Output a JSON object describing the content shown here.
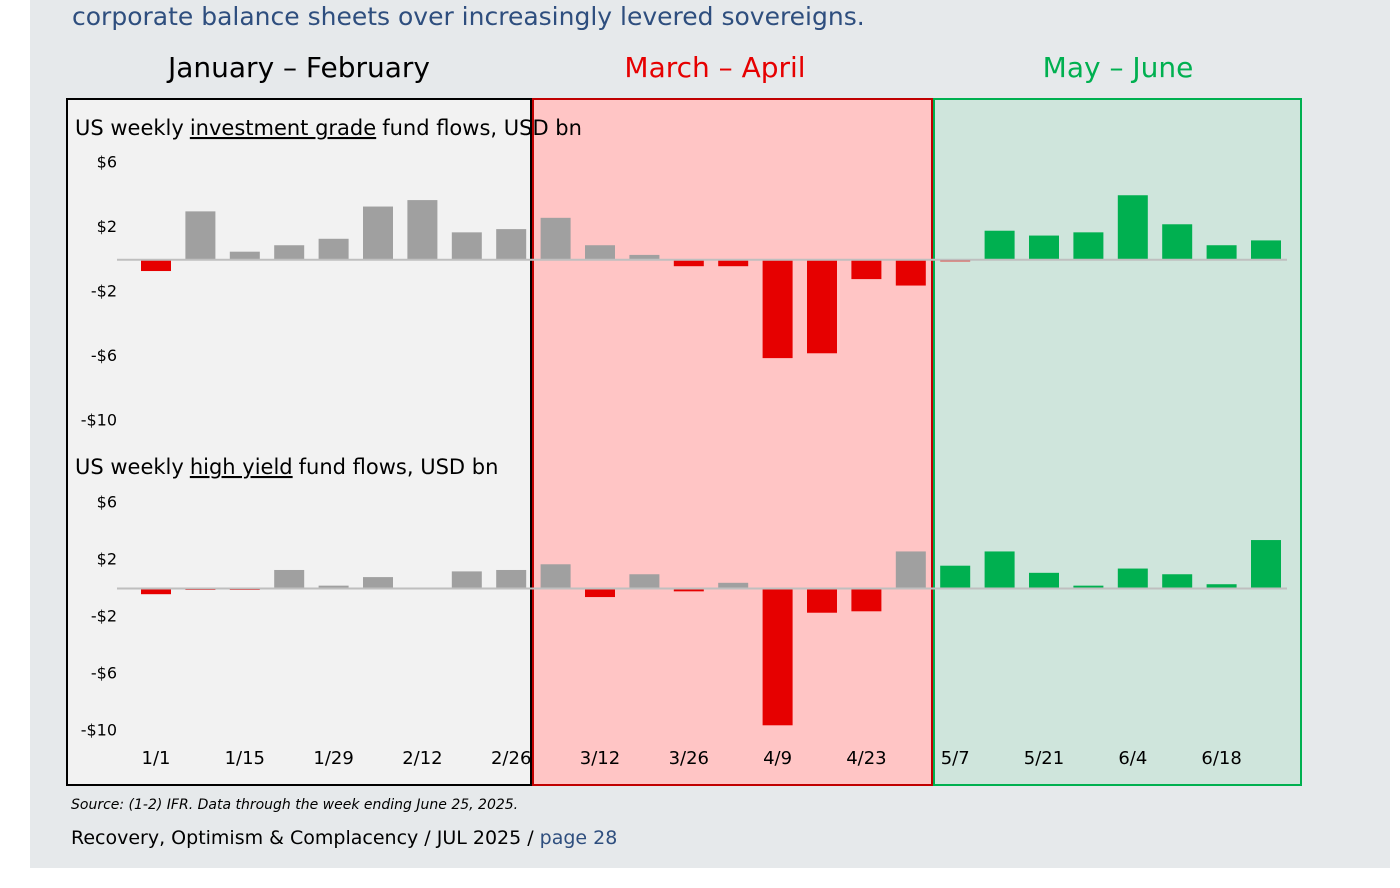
{
  "intro": "corporate balance sheets over increasingly levered sovereigns.",
  "chart_data": {
    "type": "bar",
    "periods": [
      {
        "label": "January – February",
        "color": "#000000"
      },
      {
        "label": "March – April",
        "color": "#e60000"
      },
      {
        "label": "May – June",
        "color": "#00b050"
      }
    ],
    "categories": [
      "1/1",
      null,
      "1/15",
      null,
      "1/29",
      null,
      "2/12",
      null,
      "2/26",
      null,
      "3/12",
      null,
      "3/26",
      null,
      "4/9",
      null,
      "4/23",
      null,
      "5/7",
      null,
      "5/21",
      null,
      "6/4",
      null,
      "6/18",
      null
    ],
    "panels": [
      {
        "title_parts": [
          "US weekly",
          "investment grade",
          "fund flows, USD bn"
        ],
        "values": [
          -0.7,
          3.0,
          0.5,
          0.9,
          1.3,
          3.3,
          3.7,
          1.7,
          1.9,
          2.6,
          0.9,
          0.3,
          -0.4,
          -0.4,
          -6.1,
          -5.8,
          -1.2,
          -1.6,
          -0.1,
          1.8,
          1.5,
          1.7,
          4.0,
          2.2,
          0.9,
          1.2
        ],
        "colors": [
          "#e60000",
          "#a0a0a0",
          "#a0a0a0",
          "#a0a0a0",
          "#a0a0a0",
          "#a0a0a0",
          "#a0a0a0",
          "#a0a0a0",
          "#a0a0a0",
          "#a0a0a0",
          "#a0a0a0",
          "#a0a0a0",
          "#e60000",
          "#e60000",
          "#e60000",
          "#e60000",
          "#e60000",
          "#e60000",
          "#e60000",
          "#00b050",
          "#00b050",
          "#00b050",
          "#00b050",
          "#00b050",
          "#00b050",
          "#00b050"
        ],
        "ylim": [
          -10,
          6
        ],
        "yticks": [
          {
            "value": 6,
            "label": "$6"
          },
          {
            "value": 2,
            "label": "$2"
          },
          {
            "value": -2,
            "label": "-$2"
          },
          {
            "value": -6,
            "label": "-$6"
          },
          {
            "value": -10,
            "label": "-$10"
          }
        ]
      },
      {
        "title_parts": [
          "US weekly",
          "high yield",
          "fund flows, USD bn"
        ],
        "values": [
          -0.4,
          -0.1,
          -0.1,
          1.3,
          0.2,
          0.8,
          0.0,
          1.2,
          1.3,
          1.7,
          -0.6,
          1.0,
          -0.2,
          0.4,
          -9.6,
          -1.7,
          -1.6,
          2.6,
          1.6,
          2.6,
          1.1,
          0.2,
          1.4,
          1.0,
          0.3,
          3.4
        ],
        "colors": [
          "#e60000",
          "#e60000",
          "#e60000",
          "#a0a0a0",
          "#a0a0a0",
          "#a0a0a0",
          "#a0a0a0",
          "#a0a0a0",
          "#a0a0a0",
          "#a0a0a0",
          "#e60000",
          "#a0a0a0",
          "#e60000",
          "#a0a0a0",
          "#e60000",
          "#e60000",
          "#e60000",
          "#a0a0a0",
          "#00b050",
          "#00b050",
          "#00b050",
          "#00b050",
          "#00b050",
          "#00b050",
          "#00b050",
          "#00b050"
        ],
        "ylim": [
          -10,
          6
        ],
        "yticks": [
          {
            "value": 6,
            "label": "$6"
          },
          {
            "value": 2,
            "label": "$2"
          },
          {
            "value": -2,
            "label": "-$2"
          },
          {
            "value": -6,
            "label": "-$6"
          },
          {
            "value": -10,
            "label": "-$10"
          }
        ]
      }
    ]
  },
  "source": "Source: (1-2) IFR. Data through the week ending June 25, 2025.",
  "footer": "Recovery, Optimism & Complacency / JUL 2025 /",
  "page": "page 28"
}
